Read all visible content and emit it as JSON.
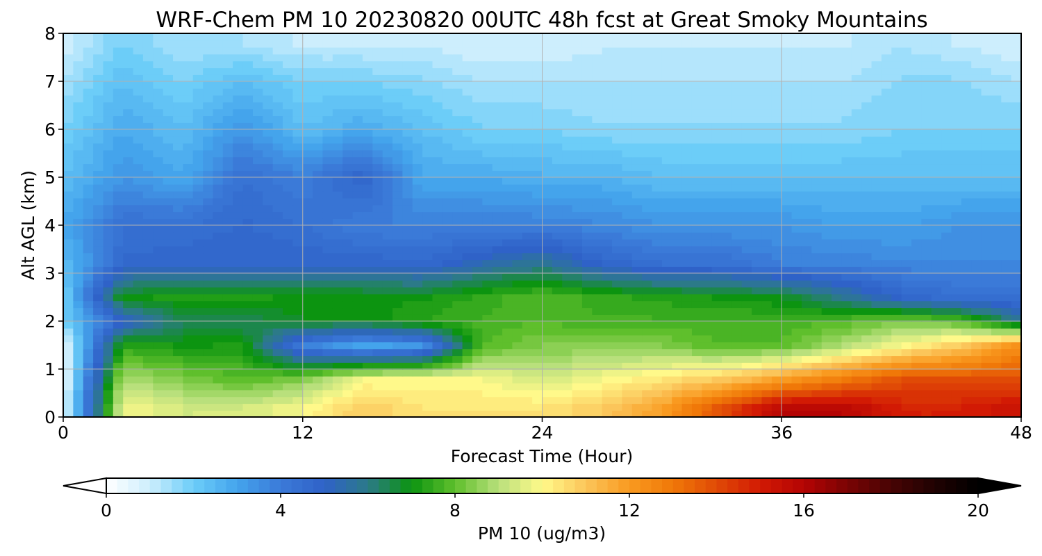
{
  "chart_data": {
    "type": "heatmap",
    "title": "WRF-Chem PM 10  20230820 00UTC 48h fcst at Great Smoky Mountains",
    "xlabel": "Forecast Time (Hour)",
    "ylabel": "Alt AGL (km)",
    "xlim": [
      0,
      48
    ],
    "ylim": [
      0,
      8
    ],
    "x_ticks": [
      "0",
      "12",
      "24",
      "36",
      "48"
    ],
    "y_ticks": [
      "0",
      "1",
      "2",
      "3",
      "4",
      "5",
      "6",
      "7",
      "8"
    ],
    "grid": true,
    "colorbar": {
      "label": "PM 10  (ug/m3)",
      "range": [
        0,
        20
      ],
      "ticks": [
        "0",
        "4",
        "8",
        "12",
        "16",
        "20"
      ],
      "extend": "both",
      "placement": "bottom"
    },
    "z_estimated_ug_m3": {
      "x_hours": [
        0,
        3,
        6,
        9,
        12,
        15,
        18,
        21,
        24,
        27,
        30,
        33,
        36,
        39,
        42,
        45,
        48
      ],
      "y_km": [
        0.2,
        0.8,
        1.5,
        2.0,
        2.5,
        3.2,
        4.0,
        5.0,
        6.0,
        7.0,
        7.8
      ],
      "values": [
        [
          0.5,
          10.0,
          9.5,
          9.5,
          10.0,
          11.0,
          10.5,
          10.5,
          10.5,
          11.0,
          12.0,
          14.0,
          16.0,
          16.0,
          15.0,
          15.0,
          15.5
        ],
        [
          0.5,
          9.0,
          8.5,
          8.0,
          8.5,
          10.0,
          10.0,
          10.0,
          9.5,
          10.0,
          10.5,
          11.0,
          12.0,
          13.0,
          14.0,
          14.0,
          14.0
        ],
        [
          0.5,
          7.5,
          7.2,
          7.3,
          4.0,
          3.0,
          3.5,
          8.0,
          8.5,
          8.5,
          8.5,
          8.0,
          8.0,
          9.0,
          10.0,
          11.0,
          12.5
        ],
        [
          2.0,
          5.0,
          6.5,
          6.5,
          7.0,
          7.0,
          7.5,
          7.8,
          8.0,
          7.8,
          7.8,
          7.8,
          7.8,
          8.0,
          8.5,
          8.0,
          6.0
        ],
        [
          2.0,
          7.2,
          7.3,
          7.3,
          7.2,
          7.2,
          7.2,
          7.6,
          8.0,
          7.6,
          7.4,
          7.2,
          7.0,
          6.0,
          5.0,
          4.5,
          4.5
        ],
        [
          2.5,
          4.8,
          5.0,
          5.0,
          5.0,
          5.0,
          4.8,
          5.5,
          6.0,
          5.0,
          4.5,
          4.5,
          4.0,
          4.0,
          3.8,
          3.8,
          3.8
        ],
        [
          3.0,
          4.5,
          4.5,
          4.8,
          4.5,
          4.0,
          4.0,
          4.0,
          4.0,
          3.8,
          3.5,
          3.5,
          3.5,
          3.2,
          3.2,
          3.5,
          3.5
        ],
        [
          2.5,
          3.5,
          3.0,
          4.5,
          4.0,
          5.0,
          3.0,
          3.0,
          2.8,
          2.8,
          2.5,
          2.5,
          2.5,
          2.5,
          2.5,
          2.5,
          2.5
        ],
        [
          2.0,
          3.0,
          2.5,
          3.5,
          2.5,
          3.0,
          2.5,
          2.0,
          2.0,
          1.8,
          1.8,
          1.8,
          1.8,
          1.8,
          2.0,
          2.0,
          2.0
        ],
        [
          1.5,
          2.5,
          2.0,
          2.5,
          2.0,
          2.0,
          1.8,
          1.5,
          1.5,
          1.5,
          1.5,
          1.5,
          1.5,
          1.5,
          1.8,
          1.8,
          1.5
        ],
        [
          1.0,
          2.0,
          1.5,
          1.5,
          1.2,
          1.2,
          1.2,
          1.0,
          1.0,
          1.2,
          1.2,
          1.2,
          1.2,
          1.2,
          1.5,
          1.2,
          1.0
        ]
      ]
    }
  },
  "colors": {
    "colormap_stops": [
      [
        0,
        "#ffffff"
      ],
      [
        1,
        "#cdeefd"
      ],
      [
        2,
        "#6ccdf8"
      ],
      [
        3,
        "#44a4ec"
      ],
      [
        4,
        "#3b7ad8"
      ],
      [
        5,
        "#2f62c8"
      ],
      [
        6,
        "#2c7a88"
      ],
      [
        7,
        "#0c9410"
      ],
      [
        8,
        "#5fbf2c"
      ],
      [
        9,
        "#b9e07c"
      ],
      [
        10,
        "#fff98a"
      ],
      [
        11,
        "#fbc55a"
      ],
      [
        12,
        "#f99a20"
      ],
      [
        13,
        "#f07808"
      ],
      [
        14,
        "#e04a06"
      ],
      [
        15,
        "#d21a04"
      ],
      [
        16,
        "#b40404"
      ],
      [
        17,
        "#7a0404"
      ],
      [
        18,
        "#480404"
      ],
      [
        19,
        "#200202"
      ],
      [
        20,
        "#000000"
      ]
    ],
    "grid": "#b0b0b0",
    "axis": "#000000"
  }
}
